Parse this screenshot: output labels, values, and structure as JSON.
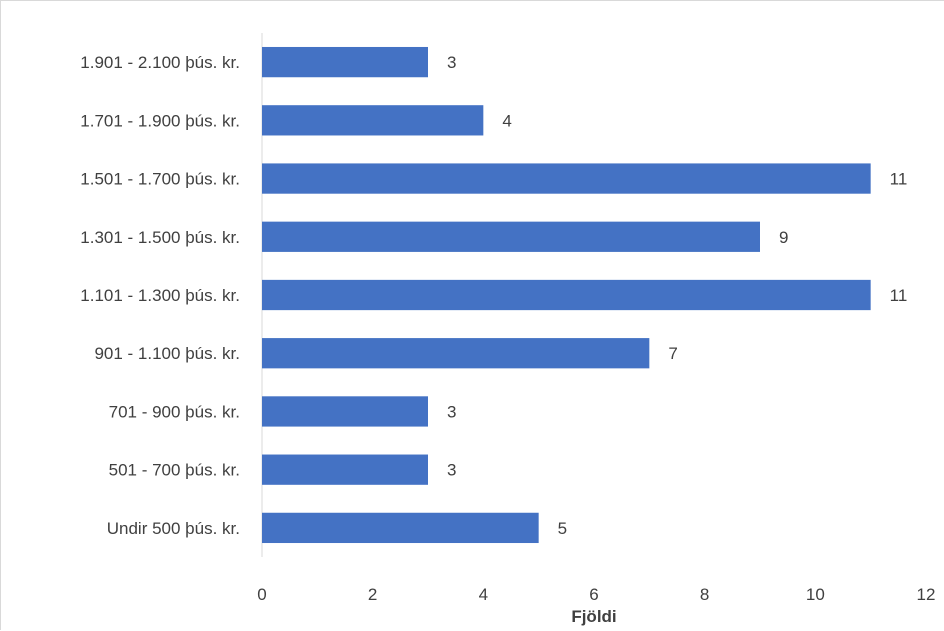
{
  "chart_data": {
    "type": "bar",
    "orientation": "horizontal",
    "categories": [
      "Undir 500 þús. kr.",
      "501 - 700 þús. kr.",
      "701 - 900 þús. kr.",
      "901 - 1.100 þús. kr.",
      "1.101 - 1.300 þús. kr.",
      "1.301 - 1.500 þús. kr.",
      "1.501 - 1.700 þús. kr.",
      "1.701 - 1.900 þús. kr.",
      "1.901 - 2.100 þús. kr."
    ],
    "values": [
      5,
      3,
      3,
      7,
      11,
      9,
      11,
      4,
      3
    ],
    "data_labels": [
      "5",
      "3",
      "3",
      "7",
      "11",
      "9",
      "11",
      "4",
      "3"
    ],
    "xlabel": "Fjöldi",
    "ylabel": "",
    "xlim": [
      0,
      12
    ],
    "x_ticks": [
      0,
      2,
      4,
      6,
      8,
      10,
      12
    ],
    "x_tick_labels": [
      "0",
      "2",
      "4",
      "6",
      "8",
      "10",
      "12"
    ],
    "bar_color": "#4472C4",
    "grid": false,
    "legend": "none"
  }
}
